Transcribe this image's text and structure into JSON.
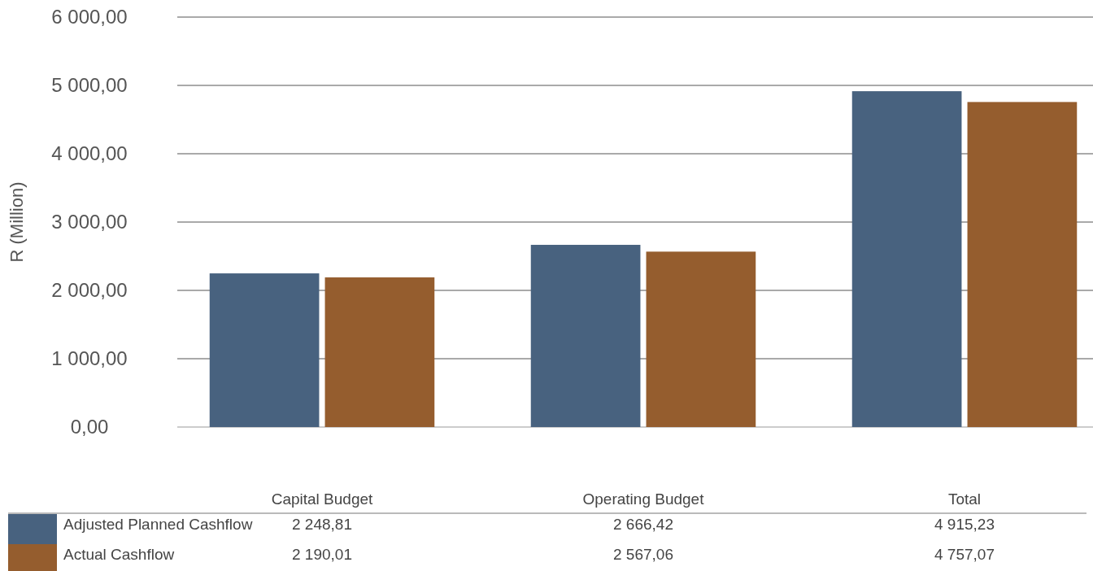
{
  "chart_data": {
    "type": "bar",
    "ylabel": "R (Million)",
    "categories": [
      "Capital Budget",
      "Operating Budget",
      "Total"
    ],
    "series": [
      {
        "name": "Adjusted Planned Cashflow",
        "color": "#48627f",
        "values": [
          2248.81,
          2666.42,
          4915.23
        ],
        "value_labels": [
          "2 248,81",
          "2 666,42",
          "4 915,23"
        ]
      },
      {
        "name": "Actual Cashflow",
        "color": "#955d2e",
        "values": [
          2190.01,
          2567.06,
          4757.07
        ],
        "value_labels": [
          "2 190,01",
          "2 567,06",
          "4 757,07"
        ]
      }
    ],
    "ylim": [
      0,
      6000
    ],
    "yticks": [
      {
        "value": 0,
        "label": "0,00"
      },
      {
        "value": 1000,
        "label": "1 000,00"
      },
      {
        "value": 2000,
        "label": "2 000,00"
      },
      {
        "value": 3000,
        "label": "3 000,00"
      },
      {
        "value": 4000,
        "label": "4 000,00"
      },
      {
        "value": 5000,
        "label": "5 000,00"
      },
      {
        "value": 6000,
        "label": "6 000,00"
      }
    ],
    "grid": "y",
    "legend": "bottom"
  }
}
